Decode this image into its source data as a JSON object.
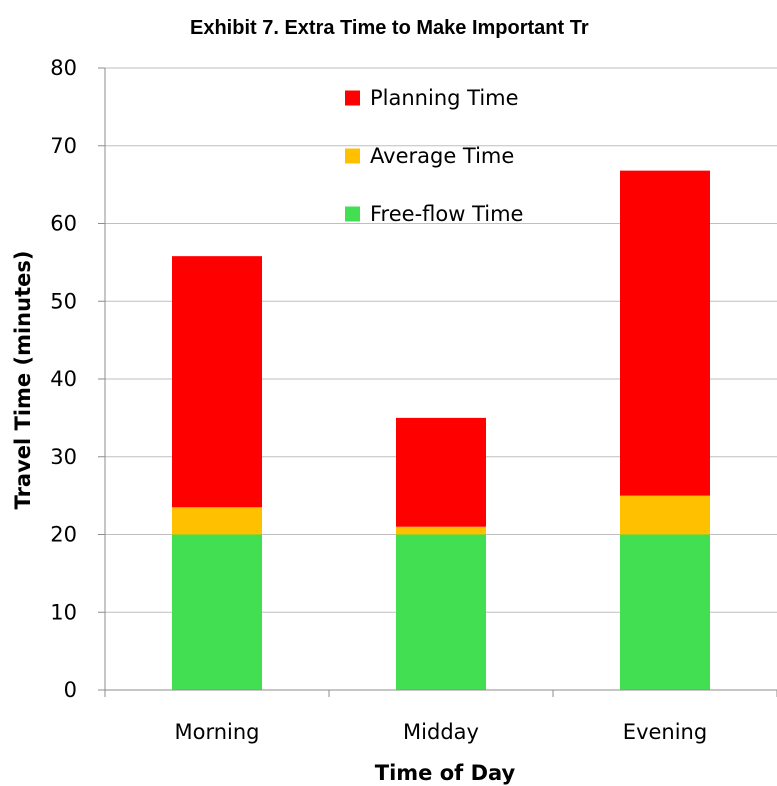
{
  "chart_data": {
    "type": "bar",
    "stacked": true,
    "title": "Exhibit 7.  Extra Time to Make Important Tr",
    "xlabel": "Time of Day",
    "ylabel": "Travel Time (minutes)",
    "categories": [
      "Morning",
      "Midday",
      "Evening"
    ],
    "ylim": [
      0,
      80
    ],
    "yticks": [
      0,
      10,
      20,
      30,
      40,
      50,
      60,
      70,
      80
    ],
    "grid": true,
    "legend_position": "top-center",
    "series": [
      {
        "name": "Free-flow Time",
        "color": "#41df51",
        "values": [
          20,
          20,
          20
        ]
      },
      {
        "name": "Average Time",
        "color": "#ffc000",
        "values": [
          3.5,
          1,
          5
        ]
      },
      {
        "name": "Planning Time",
        "color": "#ff0000",
        "values": [
          32.3,
          14,
          41.8
        ]
      }
    ],
    "legend_order": [
      "Planning Time",
      "Average Time",
      "Free-flow Time"
    ]
  }
}
